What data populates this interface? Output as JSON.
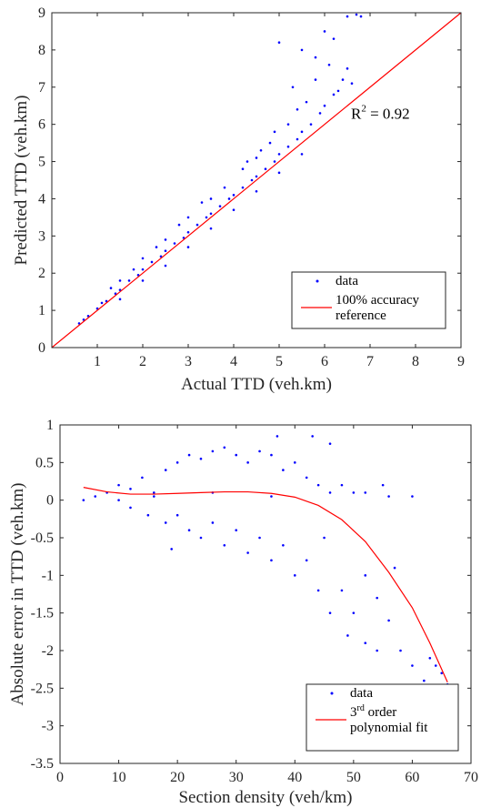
{
  "chart_data": [
    {
      "type": "scatter",
      "xlabel": "Actual TTD (veh.km)",
      "ylabel": "Predicted TTD (veh.km)",
      "xlim": [
        0,
        9
      ],
      "ylim": [
        0,
        9
      ],
      "xticks": [
        "1",
        "2",
        "3",
        "4",
        "5",
        "6",
        "7",
        "8",
        "9"
      ],
      "yticks": [
        "0",
        "1",
        "2",
        "3",
        "4",
        "5",
        "6",
        "7",
        "8",
        "9"
      ],
      "grid": false,
      "legend_position": "bottom-right",
      "annotation": {
        "base": "R",
        "sup": "2",
        "rest": " = 0.92",
        "x": 6.9,
        "y": 6.2
      },
      "series": [
        {
          "name": "data",
          "kind": "points",
          "color": "#0000ff",
          "points": [
            [
              0.6,
              0.65
            ],
            [
              0.8,
              0.85
            ],
            [
              1.0,
              1.05
            ],
            [
              1.2,
              1.25
            ],
            [
              1.4,
              1.45
            ],
            [
              1.5,
              1.55
            ],
            [
              1.7,
              1.8
            ],
            [
              1.9,
              1.95
            ],
            [
              2.0,
              2.1
            ],
            [
              2.2,
              2.3
            ],
            [
              2.4,
              2.45
            ],
            [
              2.5,
              2.6
            ],
            [
              2.7,
              2.8
            ],
            [
              2.9,
              2.95
            ],
            [
              3.0,
              3.1
            ],
            [
              3.2,
              3.3
            ],
            [
              3.4,
              3.5
            ],
            [
              3.5,
              3.6
            ],
            [
              3.7,
              3.8
            ],
            [
              3.9,
              4.0
            ],
            [
              4.0,
              4.1
            ],
            [
              4.2,
              4.3
            ],
            [
              4.4,
              4.5
            ],
            [
              4.5,
              4.6
            ],
            [
              4.7,
              4.8
            ],
            [
              4.9,
              5.0
            ],
            [
              5.0,
              5.2
            ],
            [
              5.2,
              5.4
            ],
            [
              5.4,
              5.6
            ],
            [
              5.5,
              5.8
            ],
            [
              5.7,
              6.0
            ],
            [
              5.9,
              6.3
            ],
            [
              6.0,
              6.5
            ],
            [
              6.2,
              6.8
            ],
            [
              6.4,
              7.2
            ],
            [
              6.5,
              7.5
            ],
            [
              5.0,
              8.2
            ],
            [
              5.5,
              8.0
            ],
            [
              5.8,
              7.8
            ],
            [
              6.0,
              8.5
            ],
            [
              6.2,
              8.3
            ],
            [
              6.5,
              8.9
            ],
            [
              6.7,
              8.95
            ],
            [
              5.3,
              7.0
            ],
            [
              4.8,
              5.5
            ],
            [
              4.5,
              5.1
            ],
            [
              3.8,
              4.3
            ],
            [
              3.5,
              4.0
            ],
            [
              3.0,
              3.5
            ],
            [
              2.5,
              2.9
            ],
            [
              2.0,
              2.4
            ],
            [
              1.5,
              1.8
            ],
            [
              3.0,
              2.7
            ],
            [
              3.5,
              3.2
            ],
            [
              4.0,
              3.7
            ],
            [
              4.5,
              4.2
            ],
            [
              5.0,
              4.7
            ],
            [
              5.5,
              5.2
            ],
            [
              2.5,
              2.2
            ],
            [
              2.0,
              1.8
            ],
            [
              1.5,
              1.3
            ],
            [
              4.2,
              4.8
            ],
            [
              4.6,
              5.3
            ],
            [
              5.2,
              6.0
            ],
            [
              5.6,
              6.6
            ],
            [
              5.8,
              7.2
            ],
            [
              6.1,
              7.6
            ],
            [
              5.4,
              6.4
            ],
            [
              4.9,
              5.8
            ],
            [
              4.3,
              5.0
            ],
            [
              3.3,
              3.9
            ],
            [
              2.8,
              3.3
            ],
            [
              2.3,
              2.7
            ],
            [
              1.8,
              2.1
            ],
            [
              1.3,
              1.6
            ],
            [
              1.1,
              1.2
            ],
            [
              0.7,
              0.75
            ],
            [
              6.3,
              6.9
            ],
            [
              6.6,
              7.1
            ],
            [
              6.8,
              8.9
            ]
          ]
        },
        {
          "name": "100% accuracy reference",
          "kind": "line",
          "color": "#ff0000",
          "points": [
            [
              0,
              0
            ],
            [
              9,
              9
            ]
          ]
        }
      ],
      "legend": [
        {
          "label_lines": [
            "data"
          ],
          "kind": "points",
          "color": "#0000ff"
        },
        {
          "label_lines": [
            "100% accuracy",
            "reference"
          ],
          "kind": "line",
          "color": "#ff0000"
        }
      ]
    },
    {
      "type": "scatter",
      "xlabel": "Section density (veh/km)",
      "ylabel": "Absolute error in TTD (veh.km)",
      "xlim": [
        0,
        70
      ],
      "ylim": [
        -3.5,
        1
      ],
      "xticks": [
        "0",
        "10",
        "20",
        "30",
        "40",
        "50",
        "60",
        "70"
      ],
      "yticks": [
        "-3.5",
        "-3",
        "-2.5",
        "-2",
        "-1.5",
        "-1",
        "-0.5",
        "0",
        "0.5",
        "1"
      ],
      "grid": false,
      "legend_position": "bottom-right",
      "series": [
        {
          "name": "data",
          "kind": "points",
          "color": "#0000ff",
          "points": [
            [
              4,
              0.0
            ],
            [
              6,
              0.05
            ],
            [
              8,
              0.1
            ],
            [
              10,
              0.0
            ],
            [
              10,
              0.2
            ],
            [
              12,
              -0.1
            ],
            [
              12,
              0.15
            ],
            [
              14,
              0.3
            ],
            [
              15,
              -0.2
            ],
            [
              16,
              0.1
            ],
            [
              18,
              0.4
            ],
            [
              18,
              -0.3
            ],
            [
              19,
              -0.65
            ],
            [
              20,
              0.5
            ],
            [
              20,
              -0.2
            ],
            [
              22,
              0.6
            ],
            [
              22,
              -0.4
            ],
            [
              24,
              0.55
            ],
            [
              24,
              -0.5
            ],
            [
              26,
              0.65
            ],
            [
              26,
              -0.3
            ],
            [
              28,
              0.7
            ],
            [
              28,
              -0.6
            ],
            [
              30,
              0.6
            ],
            [
              30,
              -0.4
            ],
            [
              32,
              0.5
            ],
            [
              32,
              -0.7
            ],
            [
              34,
              0.65
            ],
            [
              34,
              -0.5
            ],
            [
              36,
              0.6
            ],
            [
              36,
              -0.8
            ],
            [
              37,
              0.85
            ],
            [
              38,
              0.4
            ],
            [
              38,
              -0.6
            ],
            [
              40,
              0.5
            ],
            [
              40,
              -1.0
            ],
            [
              42,
              0.3
            ],
            [
              42,
              -0.8
            ],
            [
              43,
              0.85
            ],
            [
              44,
              0.2
            ],
            [
              44,
              -1.2
            ],
            [
              45,
              -0.5
            ],
            [
              46,
              0.75
            ],
            [
              46,
              -1.5
            ],
            [
              48,
              0.2
            ],
            [
              48,
              -1.2
            ],
            [
              49,
              -1.8
            ],
            [
              50,
              0.1
            ],
            [
              50,
              -1.5
            ],
            [
              52,
              -1.0
            ],
            [
              52,
              -1.9
            ],
            [
              54,
              -1.3
            ],
            [
              54,
              -2.0
            ],
            [
              55,
              0.2
            ],
            [
              56,
              -1.6
            ],
            [
              57,
              -0.9
            ],
            [
              58,
              -2.0
            ],
            [
              60,
              -2.2
            ],
            [
              60,
              0.05
            ],
            [
              62,
              -2.4
            ],
            [
              63,
              -2.1
            ],
            [
              64,
              -2.2
            ],
            [
              65,
              -2.3
            ],
            [
              66,
              -2.45
            ],
            [
              16,
              0.05
            ],
            [
              26,
              0.1
            ],
            [
              36,
              0.05
            ],
            [
              46,
              0.1
            ],
            [
              52,
              0.1
            ],
            [
              56,
              0.05
            ]
          ]
        },
        {
          "name": "3rd order polynomial fit",
          "kind": "line",
          "color": "#ff0000",
          "points": [
            [
              4,
              0.17
            ],
            [
              8,
              0.11
            ],
            [
              12,
              0.08
            ],
            [
              16,
              0.08
            ],
            [
              20,
              0.09
            ],
            [
              24,
              0.1
            ],
            [
              28,
              0.11
            ],
            [
              32,
              0.11
            ],
            [
              36,
              0.09
            ],
            [
              40,
              0.04
            ],
            [
              44,
              -0.07
            ],
            [
              48,
              -0.26
            ],
            [
              52,
              -0.55
            ],
            [
              56,
              -0.96
            ],
            [
              60,
              -1.43
            ],
            [
              63,
              -1.9
            ],
            [
              66,
              -2.42
            ]
          ]
        }
      ],
      "legend": [
        {
          "label_lines": [
            "data"
          ],
          "kind": "points",
          "color": "#0000ff"
        },
        {
          "label_lines": [
            "3rd order",
            "polynomial fit"
          ],
          "kind": "line",
          "color": "#ff0000",
          "sup_first": {
            "base": "3",
            "sup": "rd",
            "rest": " order"
          }
        }
      ]
    }
  ]
}
